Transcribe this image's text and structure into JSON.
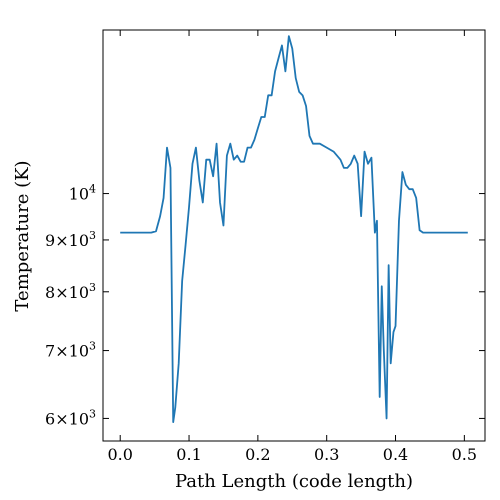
{
  "chart_data": {
    "type": "line",
    "title": "",
    "xlabel": "Path Length  (code length)",
    "ylabel": "Temperature  (K)",
    "yscale": "log",
    "xlim": [
      -0.025,
      0.53
    ],
    "ylim": [
      5700,
      14500
    ],
    "grid": false,
    "legend": "none",
    "series_color": "#1f77b4",
    "xticks": [
      {
        "value": 0.0,
        "label": "0.0"
      },
      {
        "value": 0.1,
        "label": "0.1"
      },
      {
        "value": 0.2,
        "label": "0.2"
      },
      {
        "value": 0.3,
        "label": "0.3"
      },
      {
        "value": 0.4,
        "label": "0.4"
      },
      {
        "value": 0.5,
        "label": "0.5"
      }
    ],
    "yticks": [
      {
        "value": 6000,
        "mantissa": "6",
        "base": "10",
        "exp": "3"
      },
      {
        "value": 7000,
        "mantissa": "7",
        "base": "10",
        "exp": "3"
      },
      {
        "value": 8000,
        "mantissa": "8",
        "base": "10",
        "exp": "3"
      },
      {
        "value": 9000,
        "mantissa": "9",
        "base": "10",
        "exp": "3"
      },
      {
        "value": 10000,
        "mantissa": "",
        "base": "10",
        "exp": "4"
      }
    ],
    "series": [
      {
        "x": [
          0.0,
          0.02,
          0.045,
          0.052,
          0.058,
          0.063,
          0.068,
          0.073,
          0.077,
          0.08,
          0.085,
          0.09,
          0.095,
          0.1,
          0.105,
          0.11,
          0.115,
          0.12,
          0.125,
          0.13,
          0.135,
          0.14,
          0.145,
          0.15,
          0.155,
          0.16,
          0.165,
          0.17,
          0.175,
          0.18,
          0.185,
          0.19,
          0.195,
          0.2,
          0.205,
          0.21,
          0.215,
          0.22,
          0.225,
          0.23,
          0.235,
          0.24,
          0.245,
          0.25,
          0.255,
          0.26,
          0.265,
          0.27,
          0.275,
          0.28,
          0.285,
          0.29,
          0.3,
          0.31,
          0.32,
          0.325,
          0.33,
          0.335,
          0.34,
          0.345,
          0.35,
          0.355,
          0.36,
          0.365,
          0.37,
          0.373,
          0.377,
          0.38,
          0.383,
          0.387,
          0.39,
          0.393,
          0.397,
          0.4,
          0.405,
          0.41,
          0.415,
          0.42,
          0.425,
          0.43,
          0.435,
          0.44,
          0.445,
          0.45,
          0.455,
          0.46,
          0.47,
          0.48,
          0.49,
          0.505
        ],
        "y": [
          9150,
          9150,
          9150,
          9180,
          9500,
          9900,
          11100,
          10600,
          5950,
          6150,
          6800,
          8200,
          8900,
          9700,
          10700,
          11100,
          10300,
          9800,
          10800,
          10800,
          10400,
          11200,
          9800,
          9300,
          10900,
          11200,
          10800,
          10900,
          10750,
          10750,
          11100,
          11100,
          11300,
          11600,
          11900,
          11900,
          12500,
          12500,
          13200,
          13600,
          14000,
          13200,
          14300,
          13900,
          13000,
          12600,
          12500,
          12200,
          11400,
          11200,
          11200,
          11200,
          11100,
          11000,
          10800,
          10600,
          10600,
          10700,
          10900,
          10700,
          9500,
          11000,
          10700,
          10850,
          9150,
          9400,
          6300,
          8100,
          7000,
          6000,
          8500,
          6800,
          7300,
          7400,
          9400,
          10500,
          10200,
          10100,
          10100,
          9900,
          9200,
          9150,
          9150,
          9150,
          9150,
          9150,
          9150,
          9150,
          9150,
          9150
        ]
      }
    ]
  }
}
